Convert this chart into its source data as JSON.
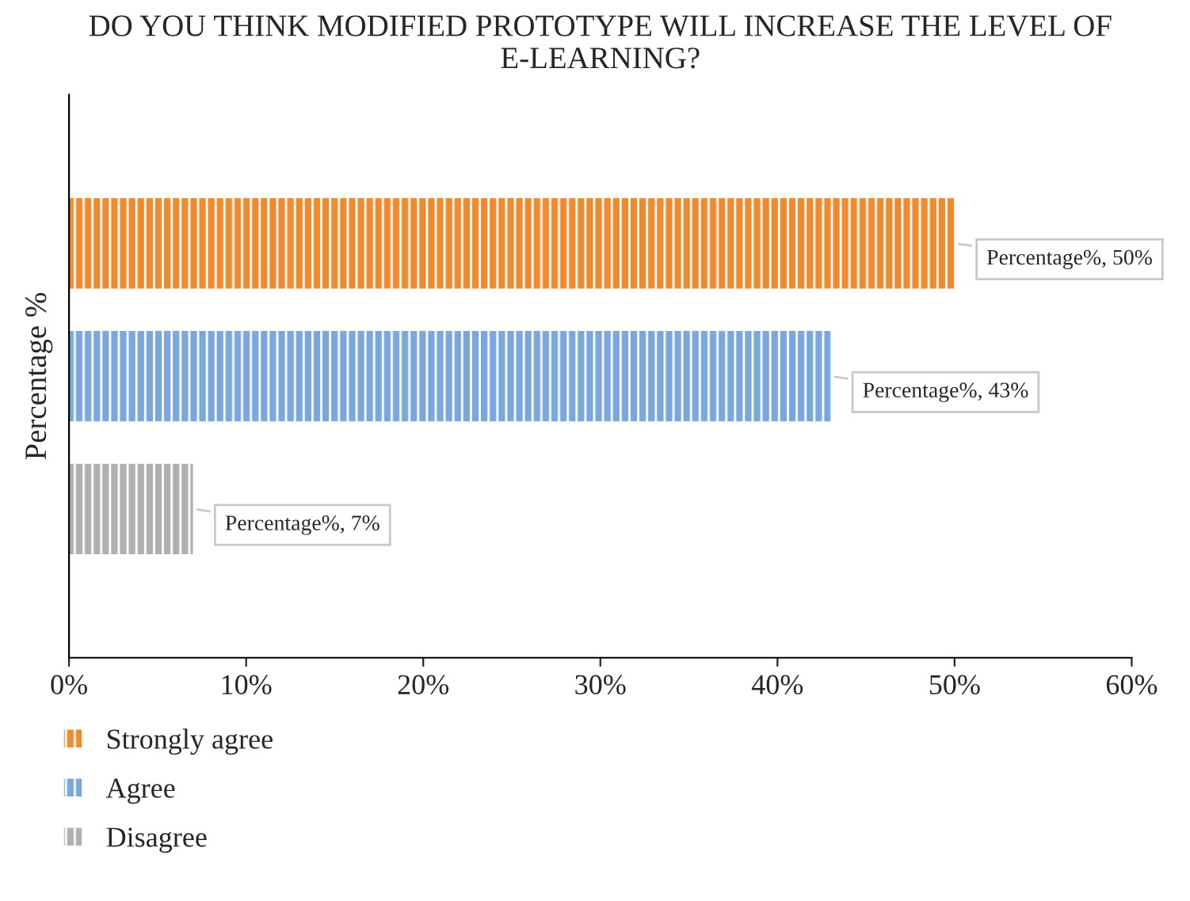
{
  "chart_data": {
    "type": "bar",
    "orientation": "horizontal",
    "title": "DO YOU THINK MODIFIED PROTOTYPE WILL INCREASE THE LEVEL OF E-LEARNING?",
    "ylabel": "Percentage %",
    "categories": [
      null,
      null,
      null
    ],
    "series": [
      {
        "name": "Strongly agree",
        "color": "#f08a2e",
        "values": [
          50,
          null,
          null
        ],
        "value_labels": [
          "Percentage%, 50%",
          null,
          null
        ]
      },
      {
        "name": "Agree",
        "color": "#7aa7de",
        "values": [
          null,
          43,
          null
        ],
        "value_labels": [
          null,
          "Percentage%, 43%",
          null
        ]
      },
      {
        "name": "Disagree",
        "color": "#b0b0b0",
        "values": [
          null,
          null,
          7
        ],
        "value_labels": [
          null,
          null,
          "Percentage%, 7%"
        ]
      }
    ],
    "xlim": [
      0,
      60
    ],
    "xticks": [
      {
        "value": 0,
        "label": "0%"
      },
      {
        "value": 10,
        "label": "10%"
      },
      {
        "value": 20,
        "label": "20%"
      },
      {
        "value": 30,
        "label": "30%"
      },
      {
        "value": 40,
        "label": "40%"
      },
      {
        "value": 50,
        "label": "50%"
      },
      {
        "value": 60,
        "label": "60%"
      }
    ],
    "legend": "bottom left",
    "grid": false
  }
}
